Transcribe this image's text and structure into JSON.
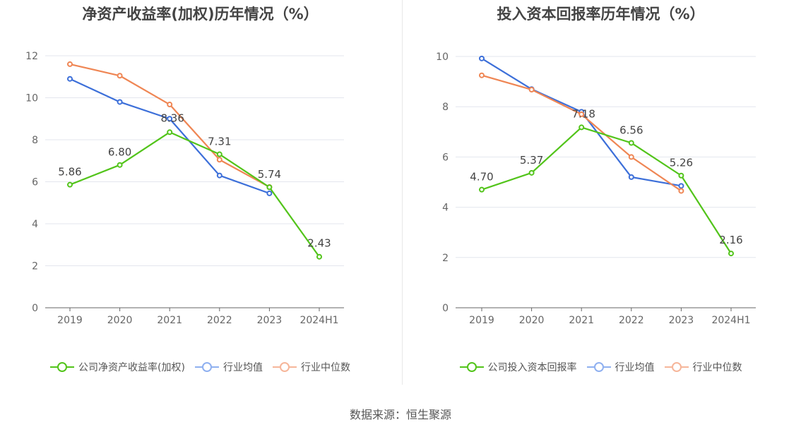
{
  "chart_data": [
    {
      "type": "line",
      "title": "净资产收益率(加权)历年情况（%）",
      "categories": [
        "2019",
        "2020",
        "2021",
        "2022",
        "2023",
        "2024H1"
      ],
      "ylim": [
        0,
        12
      ],
      "yticks": [
        0,
        2,
        4,
        6,
        8,
        10,
        12
      ],
      "grid": true,
      "legend_position": "bottom",
      "series": [
        {
          "name": "公司净资产收益率(加权)",
          "color": "#52c41a",
          "values": [
            5.86,
            6.8,
            8.36,
            7.31,
            5.74,
            2.43
          ],
          "labels": [
            "5.86",
            "6.80",
            "8.36",
            "7.31",
            "5.74",
            "2.43"
          ]
        },
        {
          "name": "行业均值",
          "color": "#3c6fd9",
          "values": [
            10.9,
            9.8,
            9.0,
            6.3,
            5.45,
            null
          ]
        },
        {
          "name": "行业中位数",
          "color": "#ef8654",
          "values": [
            11.6,
            11.05,
            9.68,
            7.05,
            5.75,
            null
          ]
        }
      ]
    },
    {
      "type": "line",
      "title": "投入资本回报率历年情况（%）",
      "categories": [
        "2019",
        "2020",
        "2021",
        "2022",
        "2023",
        "2024H1"
      ],
      "ylim": [
        0,
        10
      ],
      "yticks": [
        0,
        2,
        4,
        6,
        8,
        10
      ],
      "grid": true,
      "legend_position": "bottom",
      "series": [
        {
          "name": "公司投入资本回报率",
          "color": "#52c41a",
          "values": [
            4.7,
            5.37,
            7.18,
            6.56,
            5.26,
            2.16
          ],
          "labels": [
            "4.70",
            "5.37",
            "7.18",
            "6.56",
            "5.26",
            "2.16"
          ]
        },
        {
          "name": "行业均值",
          "color": "#3c6fd9",
          "values": [
            9.92,
            8.7,
            7.8,
            5.2,
            4.85,
            null
          ]
        },
        {
          "name": "行业中位数",
          "color": "#ef8654",
          "values": [
            9.25,
            8.68,
            7.7,
            6.0,
            4.65,
            null
          ]
        }
      ]
    }
  ],
  "legend_colors": {
    "company": "#52c41a",
    "avg_line": "#8fb0f0",
    "avg_circle": "#8fb0f0",
    "median_line": "#f6b69a",
    "median_circle": "#f6b69a"
  },
  "source": "数据来源：恒生聚源"
}
